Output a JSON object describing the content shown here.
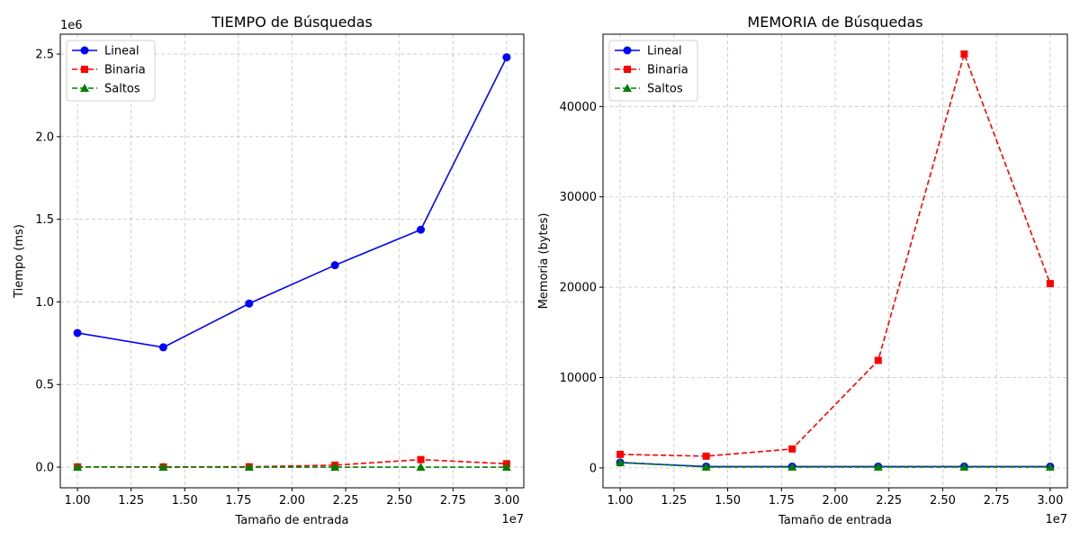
{
  "chart_data": [
    {
      "type": "line",
      "title": "TIEMPO de Búsquedas",
      "xlabel": "Tamaño de entrada",
      "ylabel": "Tiempo (ms)",
      "x_offset_label": "1e7",
      "y_offset_label": "1e6",
      "x": [
        10000000,
        14000000,
        18000000,
        22000000,
        26000000,
        30000000
      ],
      "xlim": [
        9200000,
        30800000
      ],
      "ylim": [
        -125000,
        2620000
      ],
      "x_ticks": [
        10000000,
        12500000,
        15000000,
        17500000,
        20000000,
        22500000,
        25000000,
        27500000,
        30000000
      ],
      "x_tick_labels": [
        "1.00",
        "1.25",
        "1.50",
        "1.75",
        "2.00",
        "2.25",
        "2.50",
        "2.75",
        "3.00"
      ],
      "y_ticks": [
        0,
        500000,
        1000000,
        1500000,
        2000000,
        2500000
      ],
      "y_tick_labels": [
        "0.0",
        "0.5",
        "1.0",
        "1.5",
        "2.0",
        "2.5"
      ],
      "grid": true,
      "legend_position": "top-left",
      "series": [
        {
          "name": "Lineal",
          "color": "#0000ff",
          "linestyle": "solid",
          "marker": "circle",
          "values": [
            812000,
            725000,
            990000,
            1222000,
            1437000,
            2480000
          ]
        },
        {
          "name": "Binaria",
          "color": "#ff0000",
          "linestyle": "dashed",
          "marker": "square",
          "values": [
            1500,
            1300,
            2100,
            11900,
            45800,
            20400
          ]
        },
        {
          "name": "Saltos",
          "color": "#008000",
          "linestyle": "dashed",
          "marker": "triangle",
          "values": [
            600,
            100,
            100,
            100,
            100,
            100
          ]
        }
      ]
    },
    {
      "type": "line",
      "title": "MEMORIA de Búsquedas",
      "xlabel": "Tamaño de entrada",
      "ylabel": "Memoria (bytes)",
      "x_offset_label": "1e7",
      "y_offset_label": "",
      "x": [
        10000000,
        14000000,
        18000000,
        22000000,
        26000000,
        30000000
      ],
      "xlim": [
        9200000,
        30800000
      ],
      "ylim": [
        -2200,
        48000
      ],
      "x_ticks": [
        10000000,
        12500000,
        15000000,
        17500000,
        20000000,
        22500000,
        25000000,
        27500000,
        30000000
      ],
      "x_tick_labels": [
        "1.00",
        "1.25",
        "1.50",
        "1.75",
        "2.00",
        "2.25",
        "2.50",
        "2.75",
        "3.00"
      ],
      "y_ticks": [
        0,
        10000,
        20000,
        30000,
        40000
      ],
      "y_tick_labels": [
        "0",
        "10000",
        "20000",
        "30000",
        "40000"
      ],
      "grid": true,
      "legend_position": "top-left",
      "series": [
        {
          "name": "Lineal",
          "color": "#0000ff",
          "linestyle": "solid",
          "marker": "circle",
          "values": [
            600,
            150,
            150,
            150,
            150,
            150
          ]
        },
        {
          "name": "Binaria",
          "color": "#ff0000",
          "linestyle": "dashed",
          "marker": "square",
          "values": [
            1500,
            1300,
            2100,
            11900,
            45800,
            20400
          ]
        },
        {
          "name": "Saltos",
          "color": "#008000",
          "linestyle": "dashed",
          "marker": "triangle",
          "values": [
            600,
            100,
            100,
            100,
            100,
            100
          ]
        }
      ]
    }
  ]
}
